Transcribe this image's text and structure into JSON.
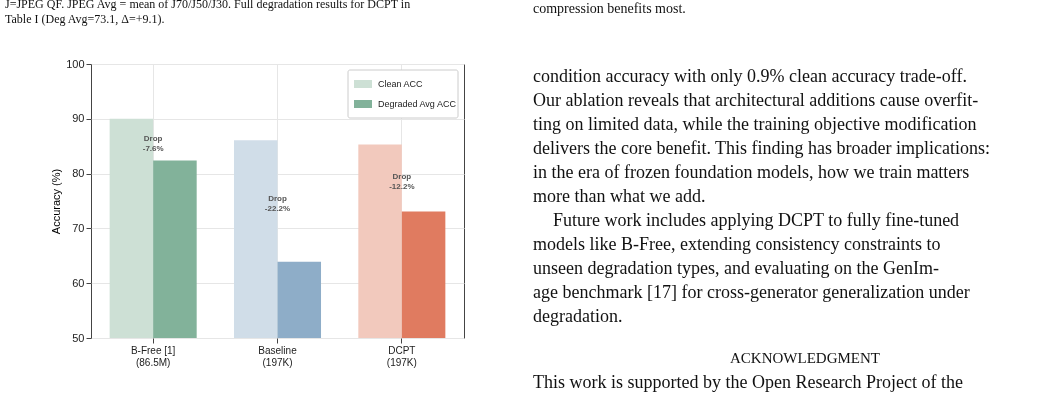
{
  "chart_data": {
    "type": "bar",
    "ylabel": "Accuracy (%)",
    "categories": [
      "B-Free [1]\n(86.5M)",
      "Baseline\n(197K)",
      "DCPT\n(197K)"
    ],
    "series": [
      {
        "name": "Clean ACC",
        "color": "#cde0d5",
        "colors": [
          "#cde0d5",
          "#d0dde8",
          "#f2c9bd"
        ],
        "values": [
          90.0,
          86.1,
          85.3
        ]
      },
      {
        "name": "Degraded Avg ACC",
        "color": "#82b29a",
        "colors": [
          "#82b29a",
          "#8eadc8",
          "#e07b60"
        ],
        "values": [
          82.4,
          63.9,
          73.1
        ]
      }
    ],
    "ylim": [
      50,
      100
    ],
    "yticks": [
      50,
      60,
      70,
      80,
      90,
      100
    ],
    "grid": true,
    "legend": "top right",
    "annotations": [
      {
        "text": "Drop\n-7.6%",
        "x": "B-Free [1]\n(86.5M)",
        "y": 86.4
      },
      {
        "text": "Drop\n-22.2%",
        "x": "Baseline\n(197K)",
        "y": 75.4
      },
      {
        "text": "Drop\n-12.2%",
        "x": "DCPT\n(197K)",
        "y": 79.4
      },
      "J=JPEG QF. JPEG Avg = mean of J70/J50/J30. Full degradation results for DCPT in",
      "Table I (Deg Avg=73.1, Δ=+9.1).",
      "compression benefits most.",
      "condition accuracy with only 0.9% clean accuracy trade-off.",
      "Our ablation reveals that architectural additions cause overfit-",
      "ting on limited data, while the training objective modification",
      "delivers the core benefit. This finding has broader implications:",
      "in the era of frozen foundation models, how we train matters",
      "more than what we add.",
      "Future work includes applying DCPT to fully fine-tuned",
      "models like B-Free, extending consistency constraints to",
      "unseen degradation types, and evaluating on the GenIm-",
      "age benchmark [17] for cross-generator generalization under",
      "degradation.",
      "ACKNOWLEDGMENT",
      "This work is supported by the Open Research Project of the"
    ]
  }
}
